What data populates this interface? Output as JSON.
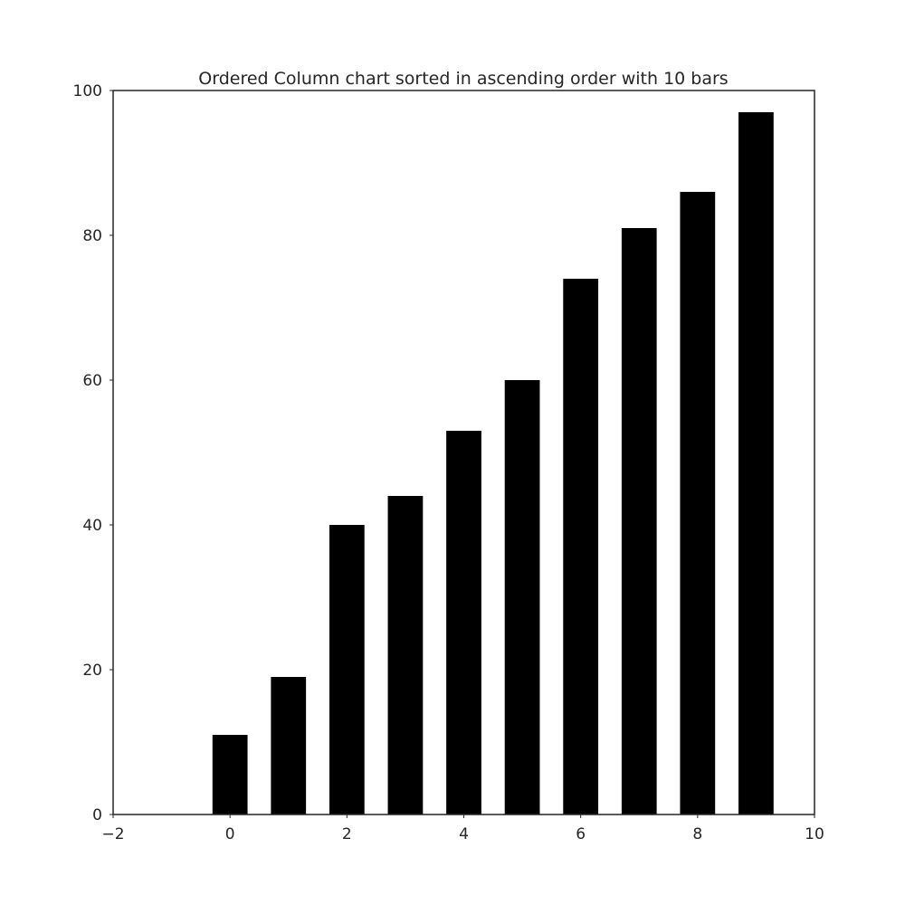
{
  "chart_data": {
    "type": "bar",
    "title": "Ordered Column chart sorted in ascending order with 10 bars",
    "xlabel": "",
    "ylabel": "",
    "x": [
      0,
      1,
      2,
      3,
      4,
      5,
      6,
      7,
      8,
      9
    ],
    "values": [
      11,
      19,
      40,
      44,
      53,
      60,
      74,
      81,
      86,
      97
    ],
    "bar_color": "#000000",
    "bar_width": 0.6,
    "xlim": [
      -2,
      10
    ],
    "ylim": [
      0,
      100
    ],
    "xticks": [
      -2,
      0,
      2,
      4,
      6,
      8,
      10
    ],
    "xtick_labels": [
      "−2",
      "0",
      "2",
      "4",
      "6",
      "8",
      "10"
    ],
    "yticks": [
      0,
      20,
      40,
      60,
      80,
      100
    ],
    "ytick_labels": [
      "0",
      "20",
      "40",
      "60",
      "80",
      "100"
    ],
    "grid": false,
    "legend": "none"
  }
}
